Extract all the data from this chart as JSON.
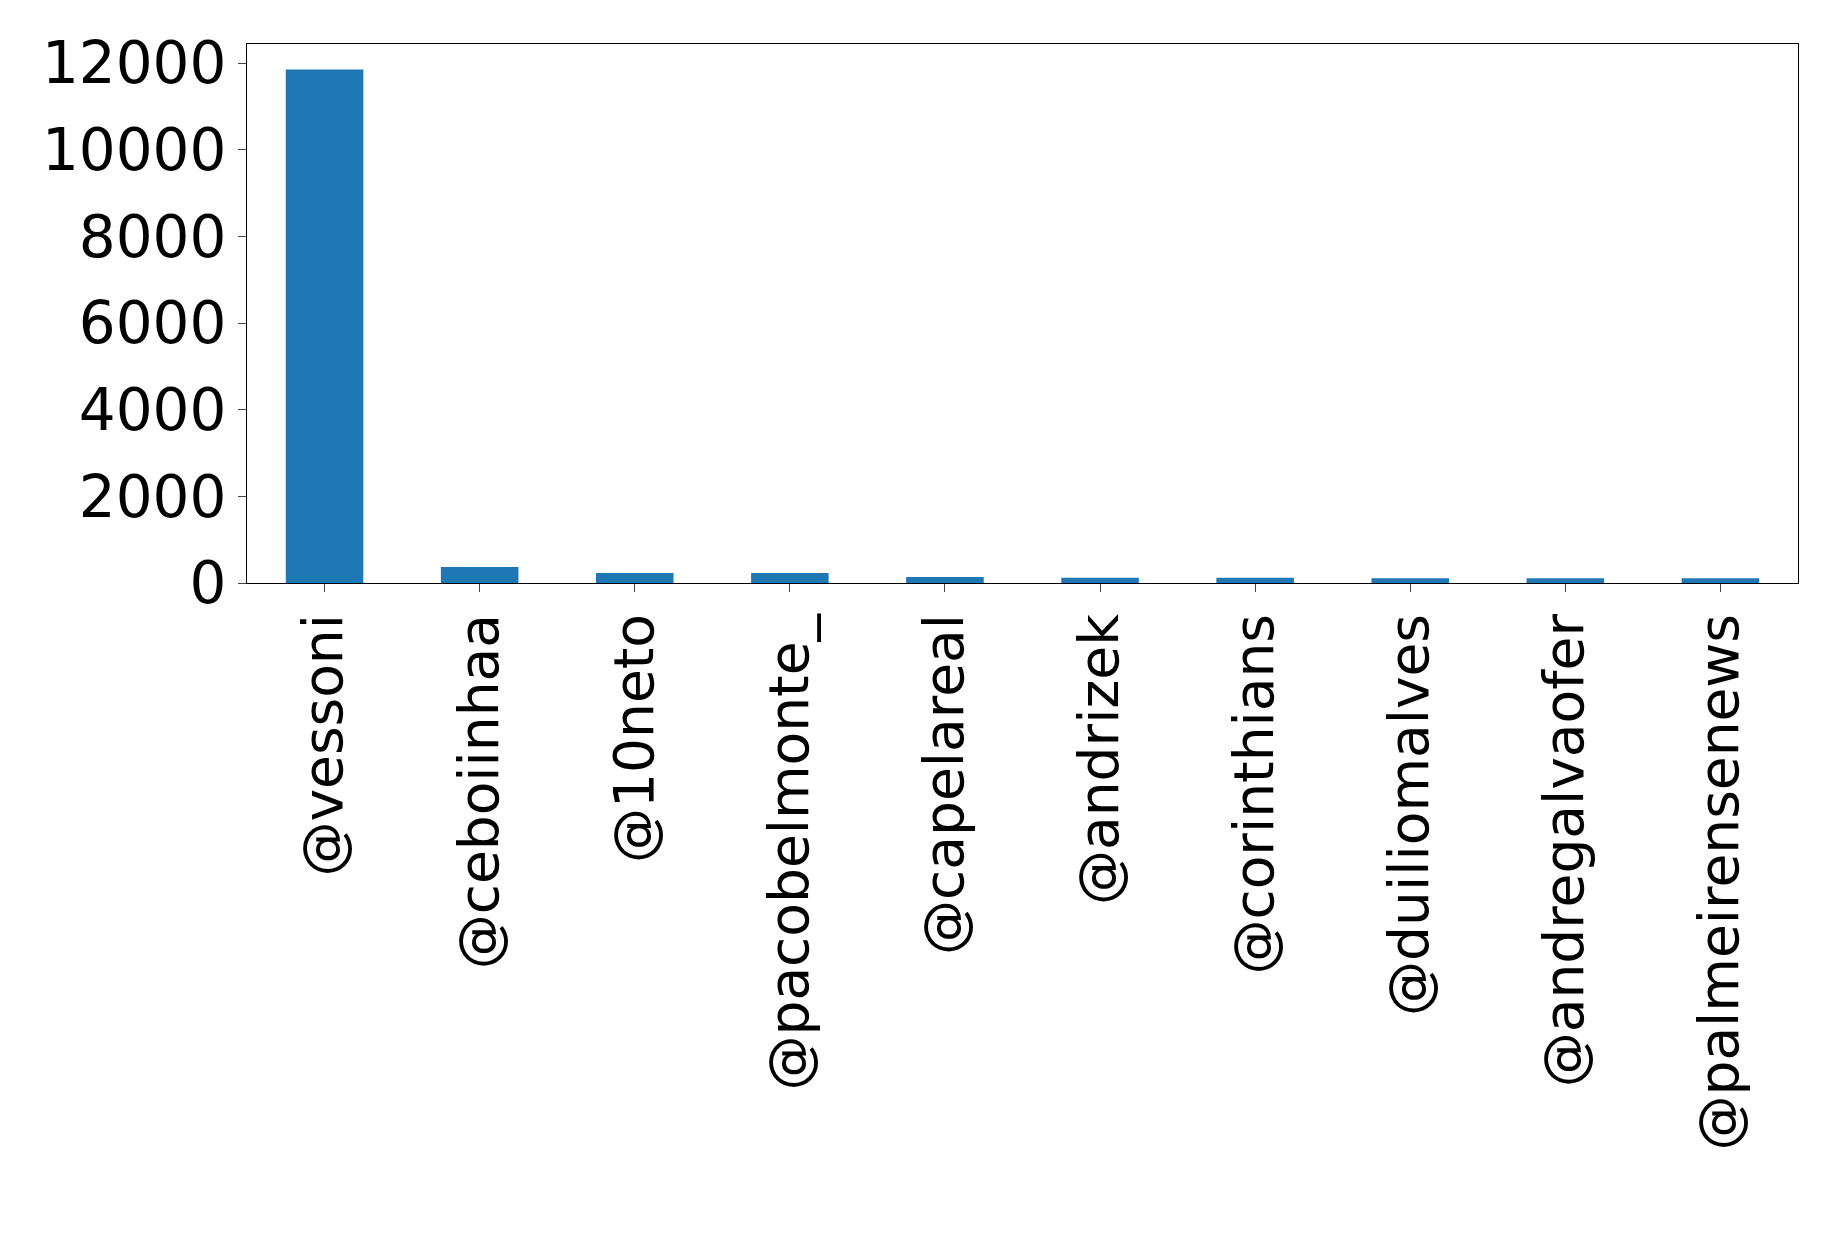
{
  "chart_data": {
    "type": "bar",
    "categories": [
      "@vessoni",
      "@ceboiinhaa",
      "@10neto",
      "@pacobelmonte_",
      "@capelareal",
      "@andrizek",
      "@corinthians",
      "@duiliomalves",
      "@andregalvaofer",
      "@palmeirensenews"
    ],
    "values": [
      11850,
      370,
      230,
      230,
      140,
      120,
      120,
      110,
      110,
      110
    ],
    "color": "#1f77b4",
    "ylim": [
      0,
      12440
    ],
    "yticks": [
      0,
      2000,
      4000,
      6000,
      8000,
      10000,
      12000
    ]
  }
}
